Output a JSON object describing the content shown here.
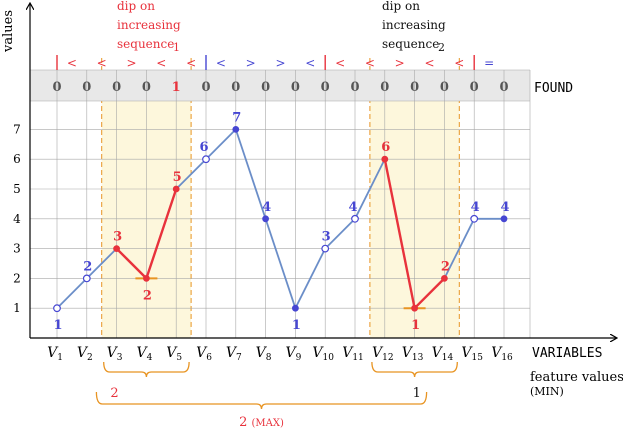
{
  "labels": {
    "y_axis": "values",
    "x_axis": "VARIABLES",
    "found": "FOUND",
    "feature_values_line1": "feature values",
    "feature_values_line2": "(MIN)",
    "dip1": [
      "dip on",
      "increasing",
      "sequence"
    ],
    "dip1_index": "1",
    "dip2": [
      "dip on",
      "increasing",
      "sequence"
    ],
    "dip2_index": "2",
    "max_suffix": "(MAX)"
  },
  "chart_data": {
    "type": "line",
    "xlabel": "VARIABLES",
    "ylabel": "values",
    "categories": [
      "V1",
      "V2",
      "V3",
      "V4",
      "V5",
      "V6",
      "V7",
      "V8",
      "V9",
      "V10",
      "V11",
      "V12",
      "V13",
      "V14",
      "V15",
      "V16"
    ],
    "y_ticks": [
      1,
      2,
      3,
      4,
      5,
      6,
      7
    ],
    "values": [
      1,
      2,
      3,
      2,
      5,
      6,
      7,
      4,
      1,
      3,
      4,
      6,
      1,
      2,
      4,
      4
    ],
    "point_labels": [
      "1",
      "2",
      "3",
      "2",
      "5",
      "6",
      "7",
      "4",
      "1",
      "3",
      "4",
      "6",
      "1",
      "2",
      "4",
      "4"
    ],
    "point_styles": [
      "open",
      "open",
      "solid",
      "solid",
      "solid",
      "open",
      "solid",
      "solid",
      "solid",
      "open",
      "open",
      "solid",
      "solid",
      "solid",
      "open",
      "solid"
    ],
    "highlight_color": [
      "blue",
      "blue",
      "red",
      "red",
      "red",
      "blue",
      "blue",
      "blue",
      "blue",
      "blue",
      "blue",
      "red",
      "red",
      "red",
      "blue",
      "blue"
    ],
    "found": [
      "0",
      "0",
      "0",
      "0",
      "1",
      "0",
      "0",
      "0",
      "0",
      "0",
      "0",
      "0",
      "0",
      "0",
      "0",
      "0"
    ],
    "signature": [
      "<",
      "<",
      ">",
      "<",
      "<",
      "<",
      ">",
      ">",
      "<",
      "<",
      "<",
      ">",
      "<",
      "<",
      "="
    ],
    "signature_color": [
      "red",
      "red",
      "red",
      "red",
      "red",
      "blue",
      "blue",
      "blue",
      "blue",
      "red",
      "red",
      "red",
      "red",
      "red",
      "blue"
    ],
    "ylim": [
      0,
      8
    ],
    "dip_regions": [
      {
        "from": "V3",
        "to": "V5",
        "value": "2",
        "feature_value": "2"
      },
      {
        "from": "V12",
        "to": "V14",
        "value": "1",
        "feature_value": "1"
      }
    ],
    "aggregate": {
      "value": "2",
      "label": "(MAX)"
    }
  },
  "colors": {
    "red": "#e8323c",
    "blue": "#4646d2",
    "line": "#6b8ec8",
    "shade": "#fdf7dc",
    "orange": "#e89422",
    "grid": "#a8a8a8",
    "header": "#e8e8e8"
  }
}
